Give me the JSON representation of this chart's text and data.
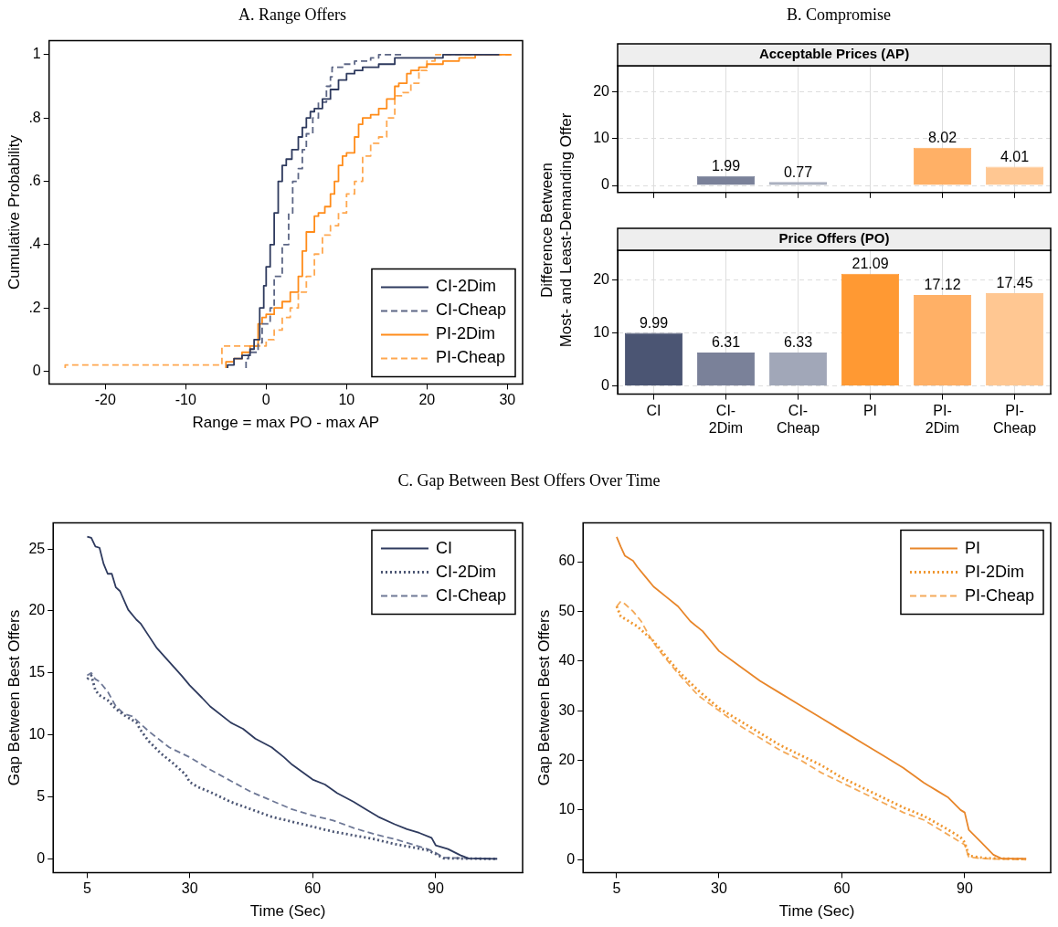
{
  "chart_data": [
    {
      "type": "step",
      "title": "A. Range Offers",
      "xlabel": "Range = max PO - max AP",
      "ylabel": "Cumulative Probability",
      "xlim": [
        -27,
        31.9
      ],
      "xticks": [
        -20,
        -10,
        0,
        10,
        20,
        30
      ],
      "ylim": [
        -0.04,
        1.044
      ],
      "yticks": [
        0,
        {
          "value": 0.2,
          "label": ".2"
        },
        {
          "value": 0.4,
          "label": ".4"
        },
        {
          "value": 0.6,
          "label": ".6"
        },
        {
          "value": 0.8,
          "label": ".8"
        },
        1
      ],
      "legend": "bottom right",
      "series": [
        {
          "name": "CI-2Dim",
          "color": "#2e3a5e",
          "line_style": "solid",
          "x": [
            -4.8,
            -4,
            -3,
            -2,
            -1.5,
            -0.8,
            -0.3,
            0,
            0.5,
            1,
            1.5,
            2,
            2.5,
            3.2,
            4,
            4.5,
            5,
            5.5,
            6,
            7,
            8,
            9,
            10,
            11,
            12,
            14,
            16,
            18,
            22,
            26,
            29
          ],
          "values": [
            0.01,
            0.02,
            0.04,
            0.05,
            0.07,
            0.1,
            0.2,
            0.27,
            0.33,
            0.4,
            0.5,
            0.6,
            0.65,
            0.67,
            0.7,
            0.74,
            0.77,
            0.8,
            0.82,
            0.83,
            0.86,
            0.89,
            0.92,
            0.94,
            0.95,
            0.96,
            0.97,
            0.99,
            0.99,
            1,
            1
          ]
        },
        {
          "name": "CI-Cheap",
          "color": "#5c6685",
          "line_style": "dashed",
          "x": [
            -2.5,
            -2.2,
            -1,
            -0.5,
            0.5,
            1,
            2,
            2.8,
            3.3,
            4,
            4.5,
            5,
            5.8,
            6.5,
            7.5,
            8,
            8.2,
            9.5,
            11,
            13,
            14,
            17
          ],
          "values": [
            0.01,
            0.04,
            0.06,
            0.09,
            0.15,
            0.2,
            0.3,
            0.4,
            0.5,
            0.6,
            0.64,
            0.7,
            0.75,
            0.8,
            0.85,
            0.9,
            0.93,
            0.96,
            0.97,
            0.98,
            0.99,
            1
          ]
        },
        {
          "name": "PI-2Dim",
          "color": "#ff8c1a",
          "line_style": "solid",
          "x": [
            -5,
            -4,
            -3,
            -2,
            -1,
            -0.5,
            0,
            1,
            2,
            3,
            4,
            4.5,
            5,
            6,
            6.5,
            7.3,
            8,
            8.5,
            9,
            9.5,
            10,
            11,
            11.5,
            12,
            13,
            14,
            15,
            16,
            16.5,
            17.5,
            18,
            19,
            20,
            22,
            24,
            26,
            30.5
          ],
          "values": [
            0.01,
            0.03,
            0.04,
            0.06,
            0.08,
            0.15,
            0.17,
            0.18,
            0.2,
            0.22,
            0.25,
            0.3,
            0.38,
            0.44,
            0.49,
            0.5,
            0.52,
            0.56,
            0.6,
            0.65,
            0.68,
            0.69,
            0.74,
            0.78,
            0.8,
            0.81,
            0.83,
            0.86,
            0.9,
            0.91,
            0.94,
            0.95,
            0.96,
            0.97,
            0.98,
            0.99,
            1
          ]
        },
        {
          "name": "PI-Cheap",
          "color": "#ffa850",
          "line_style": "dashed",
          "x": [
            -25,
            -5.5,
            -4,
            0,
            1,
            2,
            3,
            4,
            5,
            6,
            7,
            8,
            9,
            10,
            11,
            12,
            13,
            14,
            15,
            16,
            17,
            18,
            19,
            20,
            21,
            21.5,
            30.5
          ],
          "values": [
            0.01,
            0.02,
            0.08,
            0.08,
            0.1,
            0.13,
            0.17,
            0.2,
            0.25,
            0.3,
            0.37,
            0.43,
            0.46,
            0.5,
            0.56,
            0.6,
            0.68,
            0.72,
            0.74,
            0.8,
            0.87,
            0.88,
            0.91,
            0.95,
            0.98,
            1,
            1
          ]
        }
      ]
    },
    {
      "type": "bar",
      "title": "B. Compromise",
      "subtitle": "Acceptable Prices (AP)",
      "ylabel": "Difference Between\nMost- and Least-Demanding Offer",
      "categories": [
        null,
        null,
        null,
        null,
        null,
        null
      ],
      "values": [
        null,
        1.99,
        0.77,
        null,
        8.02,
        4.01
      ],
      "colors": [
        "#4b5573",
        "#7a8199",
        "#a1a7b8",
        "#ff9933",
        "#ffb066",
        "#ffc792"
      ],
      "ylim": [
        -1.5,
        25.5
      ],
      "yticks": [
        0,
        10,
        20
      ],
      "grid": true,
      "data_labels": true
    },
    {
      "type": "bar",
      "subtitle": "Price Offers (PO)",
      "categories": [
        "CI",
        "CI-2Dim",
        "CI-Cheap",
        "PI",
        "PI-2Dim",
        "PI-Cheap"
      ],
      "values": [
        9.99,
        6.31,
        6.33,
        21.09,
        17.12,
        17.45
      ],
      "colors": [
        "#4b5573",
        "#7a8199",
        "#a1a7b8",
        "#ff9933",
        "#ffb066",
        "#ffc792"
      ],
      "ylim": [
        -1.5,
        25.5
      ],
      "yticks": [
        0,
        10,
        20
      ],
      "grid": true,
      "data_labels": true
    },
    {
      "type": "line",
      "title": "C. Gap Between Best Offers Over Time",
      "xlabel": "Time (Sec)",
      "ylabel": "Gap Between Best Offers",
      "xlim": [
        -3.3,
        111.2
      ],
      "xticks": [
        5,
        30,
        60,
        90
      ],
      "ylim": [
        -1.1,
        27.1
      ],
      "yticks": [
        0,
        5,
        10,
        15,
        20,
        25
      ],
      "legend": "top right",
      "series": [
        {
          "name": "CI",
          "color": "#2e3a5e",
          "line_style": "solid",
          "x": [
            5,
            6,
            7,
            8,
            9,
            10,
            11,
            12,
            13,
            15,
            17,
            18,
            20,
            22,
            25,
            28,
            30,
            33,
            35,
            40,
            43,
            46,
            50,
            53,
            55,
            60,
            63,
            66,
            70,
            73,
            76,
            80,
            83,
            86,
            89,
            90,
            93,
            96,
            98,
            105
          ],
          "values": [
            26,
            25.9,
            25.2,
            25.1,
            23.8,
            23,
            23,
            21.9,
            21.6,
            20.1,
            19.3,
            19,
            18,
            17,
            15.9,
            14.8,
            14,
            13,
            12.3,
            11,
            10.5,
            9.7,
            9,
            8.2,
            7.6,
            6.4,
            6,
            5.3,
            4.6,
            4,
            3.4,
            2.8,
            2.4,
            2.1,
            1.7,
            1.1,
            0.8,
            0.3,
            0.05,
            0
          ]
        },
        {
          "name": "CI-2Dim",
          "color": "#4b5573",
          "line_style": "dotted",
          "x": [
            5,
            6,
            7,
            8,
            10,
            12,
            14,
            17,
            18,
            20,
            23,
            26,
            29,
            30,
            32,
            35,
            40,
            45,
            50,
            55,
            60,
            65,
            70,
            75,
            80,
            85,
            88,
            90,
            92,
            105
          ],
          "values": [
            14.5,
            14.8,
            13.6,
            13.2,
            12.8,
            12.1,
            11.6,
            11,
            10.4,
            9.5,
            8.5,
            7.7,
            6.8,
            6.2,
            5.8,
            5.4,
            4.6,
            4,
            3.4,
            3,
            2.6,
            2.2,
            1.9,
            1.6,
            1.2,
            0.9,
            0.7,
            0.4,
            0.05,
            0
          ]
        },
        {
          "name": "CI-Cheap",
          "color": "#6e7896",
          "line_style": "dashed",
          "x": [
            5,
            6,
            7,
            8,
            10,
            12,
            14,
            16,
            20,
            25,
            30,
            35,
            40,
            45,
            50,
            55,
            60,
            65,
            70,
            75,
            80,
            85,
            88,
            90,
            92,
            105
          ],
          "values": [
            14.8,
            15,
            14.5,
            14.3,
            13.5,
            12.3,
            11.7,
            11.5,
            10.3,
            9,
            8.2,
            7.2,
            6.3,
            5.4,
            4.7,
            4,
            3.5,
            3.1,
            2.5,
            2,
            1.6,
            1.1,
            0.8,
            0.5,
            0.1,
            0
          ]
        }
      ]
    },
    {
      "type": "line",
      "xlabel": "Time (Sec)",
      "ylabel": "Gap Between Best Offers",
      "xlim": [
        -3.2,
        111
      ],
      "xticks": [
        5,
        30,
        60,
        90
      ],
      "ylim": [
        -2.6,
        67.8
      ],
      "yticks": [
        0,
        10,
        20,
        30,
        40,
        50,
        60
      ],
      "legend": "top right",
      "series": [
        {
          "name": "PI",
          "color": "#e8862a",
          "line_style": "solid",
          "x": [
            5,
            6,
            7,
            9,
            10,
            12,
            14,
            17,
            20,
            23,
            26,
            28,
            30,
            35,
            40,
            45,
            50,
            55,
            60,
            65,
            70,
            75,
            80,
            83,
            86,
            89,
            90,
            91,
            94,
            97,
            99,
            105
          ],
          "values": [
            65,
            63,
            61.2,
            60.2,
            59,
            57,
            55,
            53,
            51,
            48,
            46,
            44,
            42,
            39,
            36,
            33.5,
            31,
            28.5,
            26,
            23.5,
            21,
            18.5,
            15.5,
            14,
            12.5,
            10,
            9.5,
            6,
            3.5,
            1,
            0.2,
            0.2
          ]
        },
        {
          "name": "PI-2Dim",
          "color": "#f0962e",
          "line_style": "dotted",
          "x": [
            5,
            6,
            8,
            10,
            12,
            14,
            16,
            20,
            25,
            30,
            35,
            40,
            45,
            50,
            55,
            60,
            65,
            70,
            75,
            80,
            85,
            89,
            90,
            91,
            95,
            105
          ],
          "values": [
            51,
            49,
            48,
            47,
            45.5,
            44,
            42,
            38,
            34,
            30.5,
            28,
            25.5,
            23,
            21,
            19,
            16.5,
            14.5,
            12.5,
            10.5,
            8.8,
            6.5,
            4.5,
            3.5,
            0.8,
            0.3,
            0.1
          ]
        },
        {
          "name": "PI-Cheap",
          "color": "#f4aa5a",
          "line_style": "dashed",
          "x": [
            5,
            6,
            7,
            9,
            11,
            13,
            15,
            17,
            20,
            25,
            30,
            35,
            40,
            45,
            50,
            55,
            60,
            65,
            70,
            75,
            80,
            85,
            89,
            90,
            91,
            95,
            105
          ],
          "values": [
            51,
            52,
            51.5,
            50,
            48,
            45,
            42.5,
            40.5,
            37.5,
            33,
            30,
            27,
            24.5,
            22,
            20,
            17.5,
            15.5,
            13.5,
            11.5,
            9.5,
            8,
            5.5,
            3.5,
            3,
            0.5,
            0.2,
            0
          ]
        }
      ]
    }
  ]
}
